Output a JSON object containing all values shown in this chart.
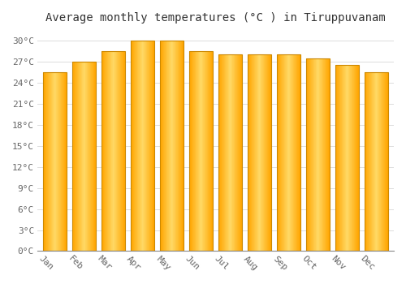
{
  "title": "Average monthly temperatures (°C ) in Tiruppuvanam",
  "months": [
    "Jan",
    "Feb",
    "Mar",
    "Apr",
    "May",
    "Jun",
    "Jul",
    "Aug",
    "Sep",
    "Oct",
    "Nov",
    "Dec"
  ],
  "temperatures": [
    25.5,
    27.0,
    28.5,
    30.0,
    30.0,
    28.5,
    28.0,
    28.0,
    28.0,
    27.5,
    26.5,
    25.5
  ],
  "bar_color_light": "#FFD966",
  "bar_color_dark": "#FFA500",
  "bar_edge_color": "#CC8800",
  "background_color": "#FFFFFF",
  "plot_bg_color": "#FFFFFF",
  "grid_color": "#DDDDDD",
  "ytick_values": [
    0,
    3,
    6,
    9,
    12,
    15,
    18,
    21,
    24,
    27,
    30
  ],
  "ylim": [
    0,
    31.5
  ],
  "title_fontsize": 10,
  "tick_fontsize": 8,
  "xlabel_rotation": -45,
  "bar_width": 0.8
}
